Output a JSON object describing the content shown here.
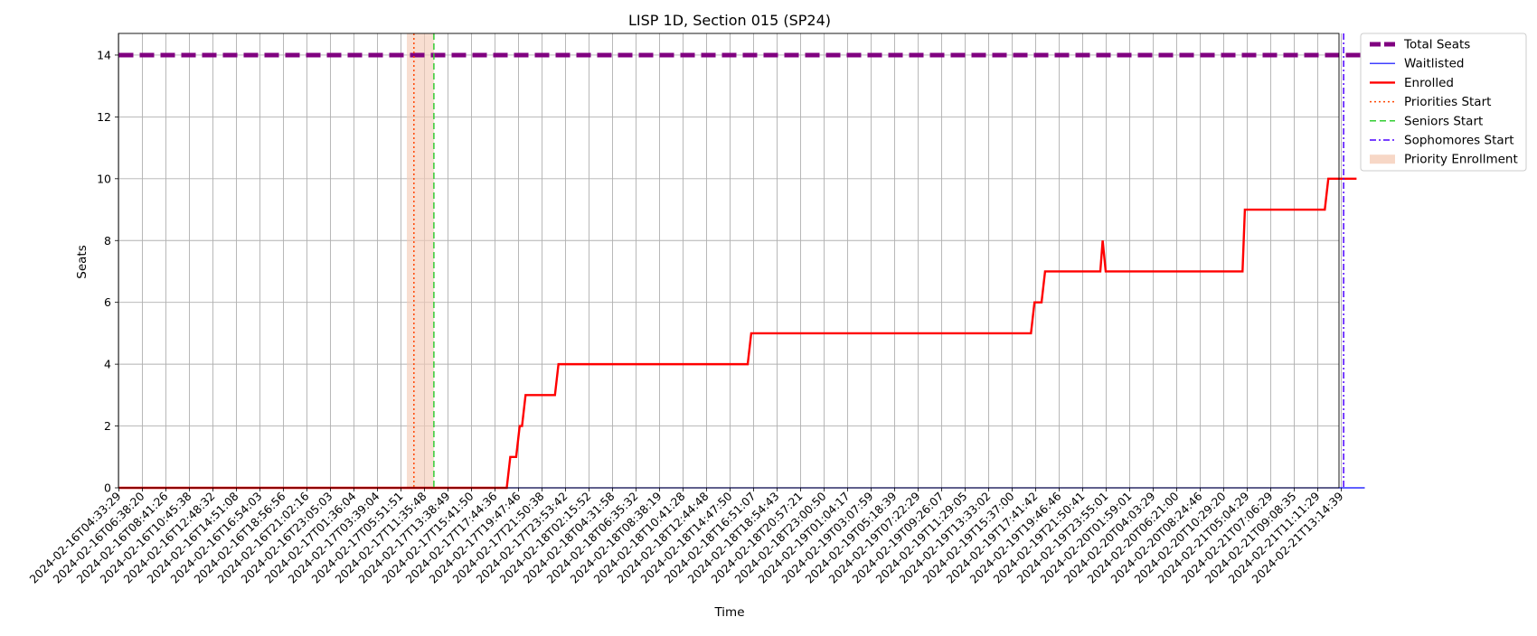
{
  "chart_data": {
    "type": "line",
    "title": "LISP 1D, Section 015 (SP24)",
    "xlabel": "Time",
    "ylabel": "Seats",
    "ylim": [
      0,
      14.7
    ],
    "yticks": [
      0,
      2,
      4,
      6,
      8,
      10,
      12,
      14
    ],
    "grid": true,
    "legend_position": "outside-top-right",
    "x_categories": [
      "2024-02-16T04:33:29",
      "2024-02-16T06:38:20",
      "2024-02-16T08:41:26",
      "2024-02-16T10:45:38",
      "2024-02-16T12:48:32",
      "2024-02-16T14:51:08",
      "2024-02-16T16:54:03",
      "2024-02-16T18:56:56",
      "2024-02-16T21:02:16",
      "2024-02-16T23:05:03",
      "2024-02-17T01:36:04",
      "2024-02-17T03:39:04",
      "2024-02-17T05:51:51",
      "2024-02-17T11:35:48",
      "2024-02-17T13:38:49",
      "2024-02-17T15:41:50",
      "2024-02-17T17:44:36",
      "2024-02-17T19:47:46",
      "2024-02-17T21:50:38",
      "2024-02-17T23:53:42",
      "2024-02-18T02:15:52",
      "2024-02-18T04:31:58",
      "2024-02-18T06:35:32",
      "2024-02-18T08:38:19",
      "2024-02-18T10:41:28",
      "2024-02-18T12:44:48",
      "2024-02-18T14:47:50",
      "2024-02-18T16:51:07",
      "2024-02-18T18:54:43",
      "2024-02-18T20:57:21",
      "2024-02-18T23:00:50",
      "2024-02-19T01:04:17",
      "2024-02-19T03:07:59",
      "2024-02-19T05:18:39",
      "2024-02-19T07:22:29",
      "2024-02-19T09:26:07",
      "2024-02-19T11:29:05",
      "2024-02-19T13:33:02",
      "2024-02-19T15:37:00",
      "2024-02-19T17:41:42",
      "2024-02-19T19:46:46",
      "2024-02-19T21:50:41",
      "2024-02-19T23:55:01",
      "2024-02-20T01:59:01",
      "2024-02-20T04:03:29",
      "2024-02-20T06:21:00",
      "2024-02-20T08:24:46",
      "2024-02-20T10:29:20",
      "2024-02-21T05:04:29",
      "2024-02-21T07:06:29",
      "2024-02-21T09:08:35",
      "2024-02-21T11:11:29",
      "2024-02-21T13:14:39"
    ],
    "series": [
      {
        "name": "Total Seats",
        "color": "#800080",
        "style": "dashed",
        "values": [
          [
            0,
            14
          ],
          [
            53,
            14
          ]
        ]
      },
      {
        "name": "Waitlisted",
        "color": "#0000ff",
        "style": "solid",
        "values": [
          [
            0,
            0
          ],
          [
            53,
            0
          ]
        ]
      },
      {
        "name": "Enrolled",
        "color": "#ff0000",
        "style": "solid",
        "values": [
          [
            0,
            0
          ],
          [
            16.5,
            0
          ],
          [
            16.65,
            1
          ],
          [
            16.9,
            1
          ],
          [
            17.05,
            2
          ],
          [
            17.15,
            2
          ],
          [
            17.3,
            3
          ],
          [
            18.55,
            3
          ],
          [
            18.7,
            4
          ],
          [
            26.75,
            4
          ],
          [
            26.9,
            5
          ],
          [
            38.8,
            5
          ],
          [
            38.95,
            6
          ],
          [
            39.25,
            6
          ],
          [
            39.4,
            7
          ],
          [
            41.75,
            7
          ],
          [
            41.85,
            8
          ],
          [
            41.98,
            7
          ],
          [
            47.8,
            7
          ],
          [
            47.9,
            9
          ],
          [
            51.3,
            9
          ],
          [
            51.45,
            10
          ],
          [
            52.65,
            10
          ]
        ]
      }
    ],
    "markers": [
      {
        "name": "Priorities Start",
        "color": "#ff4500",
        "style": "dotted",
        "x": 12.55
      },
      {
        "name": "Seniors Start",
        "color": "#32cd32",
        "style": "dashed",
        "x": 13.4
      },
      {
        "name": "Sophomores Start",
        "color": "#4b00ff",
        "style": "dashdot",
        "x": 52.1
      }
    ],
    "span": {
      "name": "Priority Enrollment",
      "color": "#f5cdb8",
      "x_start": 12.25,
      "x_end": 13.4
    }
  }
}
